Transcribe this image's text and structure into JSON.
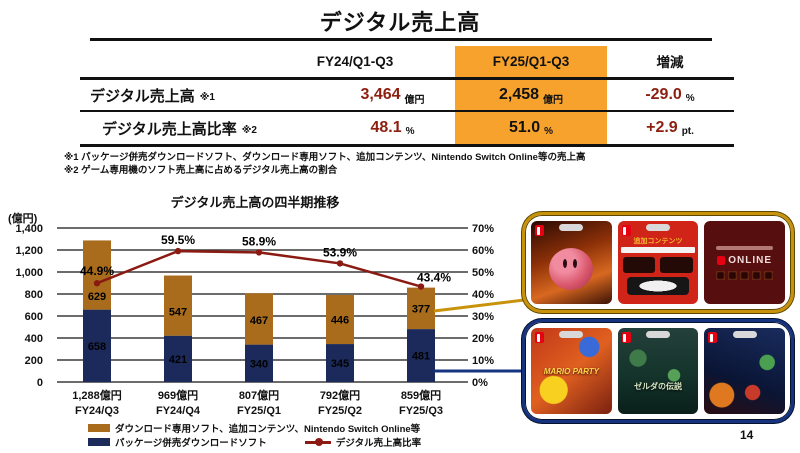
{
  "slide": {
    "title": "デジタル売上高",
    "page_number": "14"
  },
  "colors": {
    "highlight_orange": "#F6A22D",
    "value_red": "#8C1F10",
    "bar_package_navy": "#1B2A5B",
    "bar_download_brown": "#A96C1C",
    "ratio_line_red": "#8A1A12",
    "panel_gold": "#C8930B",
    "panel_blue": "#15337F"
  },
  "table": {
    "col_headers": [
      "FY24/Q1-Q3",
      "FY25/Q1-Q3",
      "増減"
    ],
    "rows": [
      {
        "label": "デジタル売上高",
        "ref": "※1",
        "fy24": "3,464",
        "fy24_unit": "億円",
        "fy25": "2,458",
        "fy25_unit": "億円",
        "change": "-29.0",
        "change_unit": "%"
      },
      {
        "label": "デジタル売上高比率",
        "ref": "※2",
        "fy24": "48.1",
        "fy24_unit": "%",
        "fy25": "51.0",
        "fy25_unit": "%",
        "change": "+2.9",
        "change_unit": "pt."
      }
    ]
  },
  "footnotes": [
    "※1 パッケージ併売ダウンロードソフト、ダウンロード専用ソフト、追加コンテンツ、Nintendo Switch Online等の売上高",
    "※2 ゲーム専用機のソフト売上高に占めるデジタル売上高の割合"
  ],
  "chart_data": {
    "type": "bar",
    "subtype": "stacked-bar-with-line",
    "title": "デジタル売上高の四半期推移",
    "unit_label": "(億円)",
    "categories": [
      "FY24/Q3",
      "FY24/Q4",
      "FY25/Q1",
      "FY25/Q2",
      "FY25/Q3"
    ],
    "totals": [
      "1,288億円",
      "969億円",
      "807億円",
      "792億円",
      "859億円"
    ],
    "series": [
      {
        "name": "パッケージ併売ダウンロードソフト",
        "type": "bar",
        "color": "#1B2A5B",
        "values": [
          658,
          421,
          340,
          345,
          481
        ],
        "label_dy": [
          0,
          0,
          0,
          0,
          0
        ]
      },
      {
        "name": "ダウンロード専用ソフト、追加コンテンツ、Nintendo Switch Online等",
        "type": "bar",
        "color": "#A96C1C",
        "values": [
          629,
          547,
          467,
          446,
          377
        ],
        "label_dy": [
          21,
          6,
          1,
          0,
          0
        ]
      },
      {
        "name": "デジタル売上高比率",
        "type": "line",
        "color": "#8A1A12",
        "values": [
          44.9,
          59.5,
          58.9,
          53.9,
          43.4
        ],
        "labels": [
          "44.9%",
          "59.5%",
          "58.9%",
          "53.9%",
          "43.4%"
        ],
        "label_offsets": [
          [
            0,
            -8
          ],
          [
            0,
            -7
          ],
          [
            0,
            -7
          ],
          [
            0,
            -7
          ],
          [
            13,
            -5
          ]
        ]
      }
    ],
    "ylim_left": [
      0,
      1400
    ],
    "yticks_left": [
      "0",
      "200",
      "400",
      "600",
      "800",
      "1,000",
      "1,200",
      "1,400"
    ],
    "ylim_right": [
      0,
      70
    ],
    "yticks_right": [
      "0%",
      "10%",
      "20%",
      "30%",
      "40%",
      "50%",
      "60%",
      "70%"
    ],
    "grid": true,
    "legend_position": "bottom"
  },
  "callouts": {
    "top": {
      "border_color": "#C8930B",
      "cards": [
        {
          "id": "kirby-game-card"
        },
        {
          "id": "dlc-card",
          "band_text": "追加コンテンツ"
        },
        {
          "id": "nintendo-switch-online-card",
          "online_text": "ONLINE"
        }
      ]
    },
    "bottom": {
      "border_color": "#15337F",
      "cards": [
        {
          "id": "mario-party-card",
          "title_text": "MARIO PARTY"
        },
        {
          "id": "zelda-card",
          "title_text": "ゼルダの伝説"
        },
        {
          "id": "brothership-card"
        }
      ]
    }
  }
}
